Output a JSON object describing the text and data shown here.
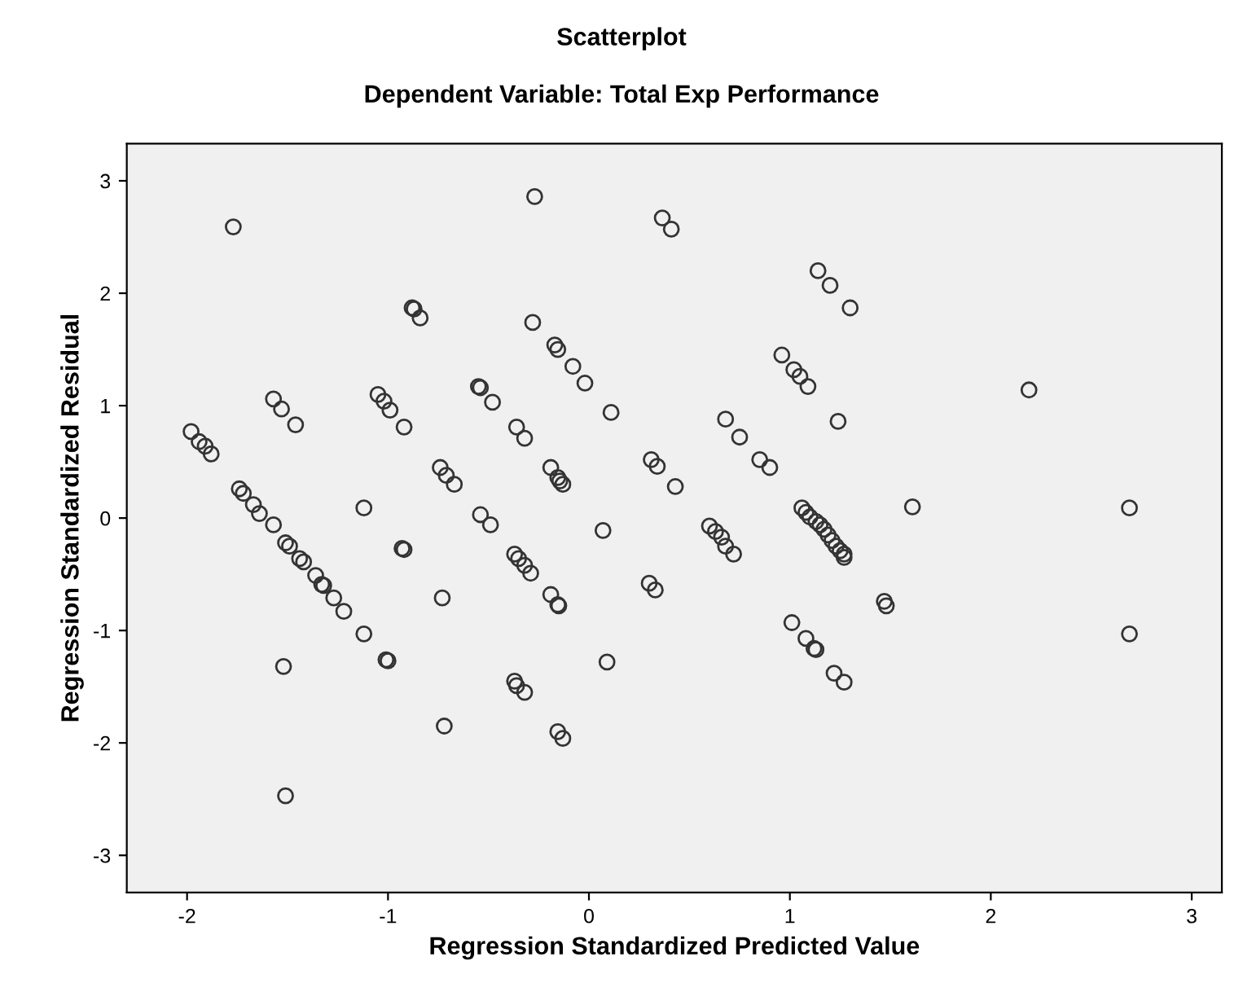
{
  "chart_data": {
    "type": "scatter",
    "title": "Scatterplot",
    "subtitle": "Dependent Variable: Total Exp Performance",
    "xlabel": "Regression Standardized Predicted Value",
    "ylabel": "Regression Standardized Residual",
    "xlim": [
      -2.3,
      3.15
    ],
    "ylim": [
      -3.33,
      3.33
    ],
    "xticks": [
      -2,
      -1,
      0,
      1,
      2,
      3
    ],
    "yticks": [
      -3,
      -2,
      -1,
      0,
      1,
      2,
      3
    ],
    "grid": false,
    "marker": "circle",
    "series": [
      {
        "color": "#333333",
        "x": [
          -1.77,
          -0.27,
          0.365,
          0.41,
          1.14,
          1.2,
          1.3,
          -0.88,
          -0.87,
          -0.84,
          -0.28,
          -0.17,
          -0.155,
          -0.08,
          -0.02,
          0.11,
          0.96,
          1.02,
          1.05,
          1.09,
          1.24,
          -0.55,
          -0.54,
          -0.48,
          -1.05,
          -1.02,
          -0.99,
          -0.92,
          -1.57,
          -1.53,
          -1.46,
          -1.98,
          -1.94,
          -1.91,
          -1.88,
          -0.74,
          -0.71,
          -0.67,
          -1.12,
          -1.74,
          -1.72,
          -1.67,
          -1.64,
          -1.57,
          -0.54,
          -0.49,
          -0.36,
          -0.32,
          -0.19,
          -0.155,
          -0.145,
          -0.13,
          0.31,
          0.34,
          0.43,
          0.68,
          0.75,
          0.85,
          0.9,
          1.06,
          1.08,
          1.1,
          1.13,
          1.15,
          1.17,
          1.19,
          1.21,
          1.23,
          1.25,
          1.27,
          1.27,
          0.6,
          0.63,
          0.66,
          0.68,
          0.72,
          0.07,
          -0.37,
          -0.35,
          -0.32,
          -0.29,
          -0.19,
          -0.155,
          -0.15,
          0.3,
          0.33,
          0.09,
          -0.37,
          -0.36,
          -0.32,
          -0.155,
          -0.13,
          1.01,
          1.08,
          1.12,
          1.13,
          1.22,
          1.27,
          1.47,
          1.48,
          2.19,
          1.61,
          2.69,
          2.69,
          -1.51,
          -1.49,
          -1.44,
          -1.42,
          -1.36,
          -1.33,
          -1.32,
          -1.27,
          -1.22,
          -1.12,
          -1.01,
          -1.0,
          -0.93,
          -0.92,
          -0.73,
          -0.72,
          -1.52,
          -1.51
        ],
        "values": [
          2.59,
          2.86,
          2.67,
          2.57,
          2.2,
          2.07,
          1.87,
          1.87,
          1.86,
          1.78,
          1.74,
          1.54,
          1.5,
          1.35,
          1.2,
          0.94,
          1.45,
          1.32,
          1.26,
          1.17,
          0.86,
          1.17,
          1.16,
          1.03,
          1.1,
          1.04,
          0.96,
          0.81,
          1.06,
          0.97,
          0.83,
          0.77,
          0.68,
          0.64,
          0.57,
          0.45,
          0.38,
          0.3,
          0.09,
          0.26,
          0.22,
          0.12,
          0.04,
          -0.06,
          0.03,
          -0.06,
          0.81,
          0.71,
          0.45,
          0.36,
          0.33,
          0.3,
          0.52,
          0.46,
          0.28,
          0.88,
          0.72,
          0.52,
          0.45,
          0.09,
          0.05,
          0.01,
          -0.03,
          -0.06,
          -0.1,
          -0.15,
          -0.2,
          -0.25,
          -0.29,
          -0.32,
          -0.35,
          -0.07,
          -0.12,
          -0.17,
          -0.25,
          -0.32,
          -0.11,
          -0.32,
          -0.36,
          -0.42,
          -0.49,
          -0.68,
          -0.77,
          -0.78,
          -0.58,
          -0.64,
          -1.28,
          -1.45,
          -1.49,
          -1.55,
          -1.9,
          -1.96,
          -0.93,
          -1.07,
          -1.16,
          -1.17,
          -1.38,
          -1.46,
          -0.74,
          -0.78,
          1.14,
          0.1,
          0.09,
          -1.03,
          -0.22,
          -0.25,
          -0.36,
          -0.39,
          -0.51,
          -0.59,
          -0.6,
          -0.71,
          -0.83,
          -1.03,
          -1.26,
          -1.27,
          -0.27,
          -0.28,
          -0.71,
          -1.85,
          -1.32,
          -2.47
        ]
      }
    ]
  }
}
